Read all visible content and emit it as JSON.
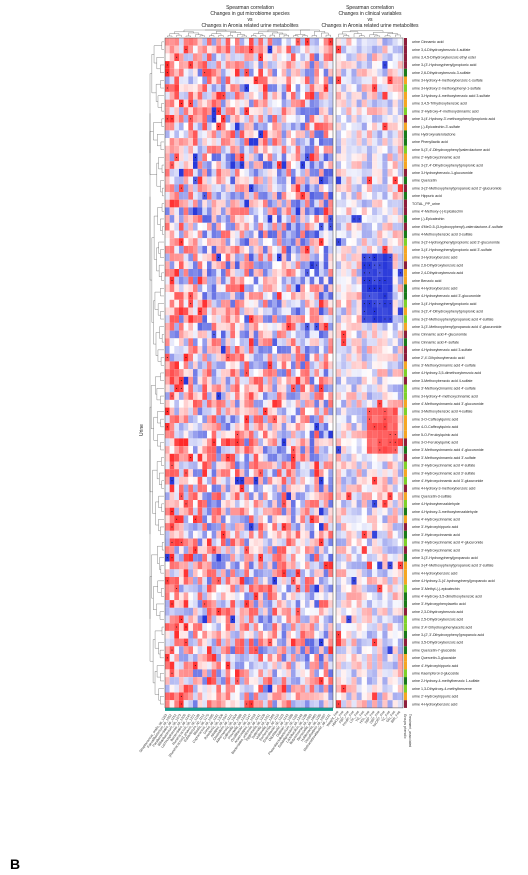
{
  "panel_label": "B",
  "chart_data": {
    "type": "heatmap",
    "title_left": [
      "Spearman correlation",
      "Changes in gut microbiome species",
      "vs",
      "Changes in Aronia related urine metabolites"
    ],
    "title_right": [
      "Spearman correlation",
      "Changes in clinical variables",
      "vs",
      "Changes in Aronia related urine metabolites"
    ],
    "y_side_label": "Urine",
    "legend_text": [
      "Groups phenolic",
      "Treatment_associated"
    ],
    "scale": "diverging red (positive) - white (0) - blue (negative)",
    "rows": [
      "urine Cinnamic acid",
      "urine 3,4-Dihydroxybenzoic 4-sulfate",
      "urine 3,4,5-Dihydroxybenzoic ethyl ester",
      "urine 3-(3'-Hydroxyphenyl)propionic acid",
      "urine 2,6-Dihydroxybenzoic-3-sulfate",
      "urine 3-Hydroxy-4-methoxybenzoic-1-sulfate",
      "urine 3-Hydroxy-2-methoxyphenyl-1-sulfate",
      "urine 3-Hydroxy-4-methoxybenzoic acid 3-sulfate",
      "urine 3,4,5-Trihydroxybenzoic acid",
      "urine 3'-Hydroxy-4'-methoxycinnamic acid",
      "urine 3-(4'-Hydroxy-3'-methoxyphenyl)propionic acid",
      "urine (-)-Epicatechin-3'-sulfate",
      "urine Hydroxyvalerolactone",
      "urine Phenyllactic acid",
      "urine 5-(3',4'-Dihydroxyphenyl)valerolactone acid",
      "urine 2'-Hydroxycinnamic acid",
      "urine 3-(3',4'-Dihydroxyphenyl)propionic acid",
      "urine 3-Hydroxybenzoic-1-glucuronide",
      "urine Quercetin",
      "urine 3-(3'-Methoxyphenyl)propanoic acid 2'-glucuronide",
      "urine Hippuric acid",
      "TOTAL_PP_urine",
      "urine 4'-Methoxy-(-)-Epicatechin",
      "urine (-)-Epicatechin",
      "urine 4'MeO-5-(3-hydroxyphenyl)-valerolactone-4'-sulfate",
      "urine 4-Methoxybenzoic acid 3-sulfate",
      "urine 3-(3'-Hydroxyphenyl)propionic acid 3'-glucuronide",
      "urine 3-(4'-Hydroxyphenyl)propionic acid 3'-sulfate",
      "urine 3-Hydroxybenzoic acid",
      "urine 2,6-Dihydroxybenzoic acid",
      "urine 2,4-Dihydroxybenzoic acid",
      "urine Benzoic acid",
      "urine 4-Hydroxybenzoic acid",
      "urine 4-Hydroxybenzoic acid 3'-glucuronide",
      "urine 3-(4'-Hydroxyphenyl)propionic acid",
      "urine 3-(3',4'-Dihydroxyphenyl)propionic acid",
      "urine 3-(3'-Methoxyphenyl)propanoic acid 4'-sulfate",
      "urine 3-(3'-Methoxyphenyl)propanoic acid 4'-glucuronide",
      "urine Cinnamic acid 4'-glucuronide",
      "urine Cinnamic acid 4'-sulfate",
      "urine 4-Hydroxybenzoic acid 3-sulfate",
      "urine 2',4'-Dihydroxybenzoic acid",
      "urine 3'-Methoxycinnamic acid 4'-sulfate",
      "urine 4-Hydroxy-3,5-dimethoxybenzoic acid",
      "urine 3-Methoxybenzoic acid 4-sulfate",
      "urine 3'-Methoxycinnamic acid 4'-sulfate",
      "urine 3-Hydroxy-4'-methoxycinnamic acid",
      "urine 4'-Methoxycinnamic acid 3'-glucuronide",
      "urine 3-Methoxybenzoic acid 4-sulfate",
      "urine 3-O-Caffeoylquinic acid",
      "urine 4-O-Caffeoylquinic acid",
      "urine 5-O-Feruloylquinic acid",
      "urine 3-O-Feruloylquinic acid",
      "urine 3'-Methoxycinnamic acid 4'-glucuronide",
      "urine 3'-Methoxycinnamic acid 3'-sulfate",
      "urine 3'-Hydroxycinnamic acid 4'-sulfate",
      "urine 3'-Hydroxycinnamic acid 3'-sulfate",
      "urine 4'-Hydroxycinnamic acid 3'-glucuronide",
      "urine 4-Hydroxy-3-methoxybenzoic acid",
      "urine Quercetin-3-sulfate",
      "urine 4-Hydroxybenzaldehyde",
      "urine 4-Hydroxy-3-methoxybenzaldehyde",
      "urine 4'-Hydroxycinnamic acid",
      "urine 3'-Hydroxyhippuric acid",
      "urine 3'-Hydroxycinnamic acid",
      "urine 3'-Hydroxycinnamic acid 4'-glucuronide",
      "urine 3'-Hydroxycinnamic acid",
      "urine 3-(3'-Hydroxyphenyl)propanoic acid",
      "urine 3-(4'-Methoxyphenyl)propanoic acid 3'-sulfate",
      "urine 4-Hydroxybenzoic acid",
      "urine 4-Hydroxy-3-(4'-hydroxyphenyl)propanoic acid",
      "urine 3'-Methyl-(-)-epicatechin",
      "urine 4'-Hydroxy-3,5-dimethoxybenzoic acid",
      "urine 3'-Hydroxyphenylacetic acid",
      "urine 2,3-Dihydroxybenzoic acid",
      "urine 2,5-Dihydroxybenzoic acid",
      "urine 3',4'-Dihydroxyphenylacetic acid",
      "urine 3-(2',3'-Dihydroxyphenyl)propanoic acid",
      "urine 3,5-Dihydroxybenzoic acid",
      "urine Quercetin-7-glucoside",
      "urine Quercetin-3-glucoside",
      "urine 4'-Hydroxyhippuric acid",
      "urine Kaempferol-3-glucoside",
      "urine 2-Hydroxy-4-methylbenzoic 1-sulfate",
      "urine 1,3-Dihydroxy-4-methylbenzene",
      "urine 2'-Hydroxyhippuric acid",
      "urine 4-Hydroxybenzoic acid"
    ],
    "columns_left": [
      "Streptococcus_oralis_sp_1163",
      "Faecalibacterium_sp_1052",
      "Parabacteroides_sp_1152",
      "Bifidobacterium_sp_1073",
      "Lachnospiraceae_sp_1200",
      "Bacteroides_sp_1145",
      "Ruminococcus_sp_1221",
      "[Ruminococcus]_gnavus_sp_1189",
      "Eubacterium_sp_1112",
      "Blautia_sp_1175",
      "Coprococcus_sp_1095",
      "Dorea_sp_1181",
      "Roseburia_sp_1206",
      "Alistipes_sp_1047",
      "Clostridium_sp_1121",
      "Akkermansia_sp_1004",
      "Collinsella_sp_1088",
      "Prevotella_sp_1233",
      "Oscillibacter_sp_1147",
      "Anaerostipes_sp_1019",
      "Bacteroides_uniformis_sp_1141",
      "Eggerthella_sp_1109",
      "Sutterella_sp_1251",
      "Veillonella_sp_1266",
      "Escherichia_sp_1115",
      "Enterobacter_sp_1103",
      "Odoribacter_sp_1143",
      "Dialister_sp_1099",
      "Phascolarctobacterium_sp_1160",
      "Subdoligranulum_sp_1248",
      "Lactobacillus_sp_1199",
      "Butyricimonas_sp_1083",
      "Barnesiella_sp_1065",
      "Holdemania_sp_1195",
      "Desulfovibrio_sp_1097",
      "Methanobrevibacter_sp_1131"
    ],
    "columns_right": [
      "Weight_Fmt",
      "HbA1c_Fmt",
      "FBP_Fmt",
      "Insulin_Fmt",
      "LDL_Fmt",
      "TG_Fmt",
      "HDL_Fmt",
      "SBP_Fmt",
      "DBP_Fmt",
      "hsCRP_Fmt",
      "TC_Fmt",
      "Glu_Fmt",
      "BMI_Fmt"
    ],
    "group_colors": [
      "#1a7a1a",
      "#8e1e3c",
      "#f5a623",
      "#7fd12a"
    ],
    "colors": {
      "positive": "#c62828",
      "neutral": "#ffffff",
      "negative": "#1e2fd8",
      "frame": "#444444",
      "bar": "#139a8f"
    }
  }
}
